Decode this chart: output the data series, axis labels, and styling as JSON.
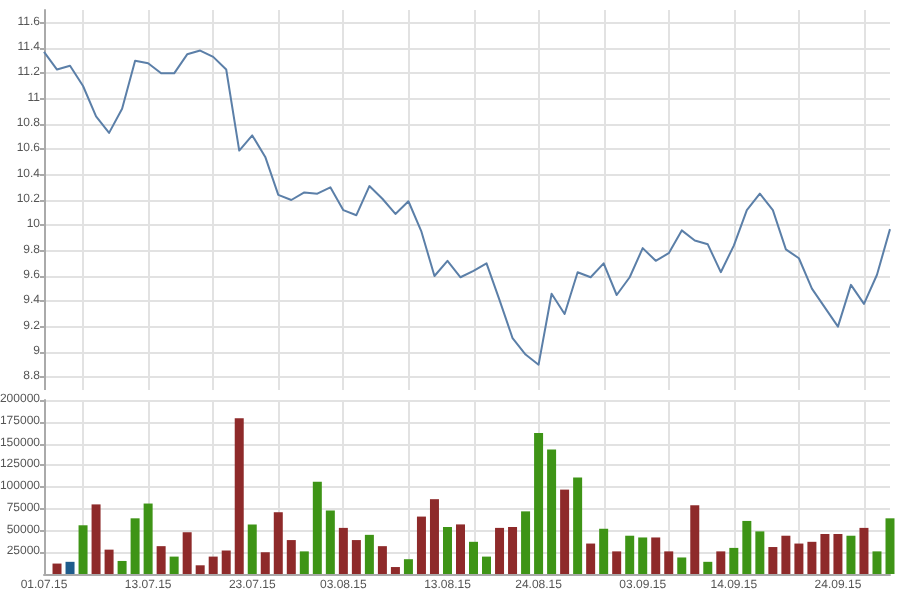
{
  "chart_data": [
    {
      "type": "line",
      "categories": [
        "01.07.15",
        null,
        null,
        null,
        null,
        null,
        null,
        null,
        "13.07.15",
        null,
        null,
        null,
        null,
        null,
        null,
        null,
        "23.07.15",
        null,
        null,
        null,
        null,
        null,
        null,
        "03.08.15",
        null,
        null,
        null,
        null,
        null,
        null,
        null,
        "13.08.15",
        null,
        null,
        null,
        null,
        null,
        null,
        "24.08.15",
        null,
        null,
        null,
        null,
        null,
        null,
        null,
        "03.09.15",
        null,
        null,
        null,
        null,
        null,
        null,
        "14.09.15",
        null,
        null,
        null,
        null,
        null,
        null,
        null,
        "24.09.15",
        null,
        null,
        null,
        null
      ],
      "values": [
        11.37,
        11.23,
        11.26,
        11.1,
        10.86,
        10.73,
        10.92,
        11.3,
        11.28,
        11.2,
        11.2,
        11.35,
        11.38,
        11.33,
        11.23,
        10.59,
        10.71,
        10.54,
        10.24,
        10.2,
        10.26,
        10.25,
        10.3,
        10.12,
        10.08,
        10.31,
        10.21,
        10.09,
        10.19,
        9.95,
        9.6,
        9.72,
        9.59,
        9.64,
        9.7,
        9.41,
        9.11,
        8.98,
        8.9,
        9.46,
        9.3,
        9.63,
        9.59,
        9.7,
        9.45,
        9.59,
        9.82,
        9.72,
        9.78,
        9.96,
        9.88,
        9.85,
        9.63,
        9.84,
        10.12,
        10.25,
        10.12,
        9.81,
        9.74,
        9.5,
        9.35,
        9.2,
        9.53,
        9.38,
        9.61,
        9.97
      ],
      "color": "#5b7fa8",
      "marker": "none",
      "ylim": [
        8.7,
        11.7
      ],
      "yticks": [
        8.8,
        9.0,
        9.2,
        9.4,
        9.6,
        9.8,
        10.0,
        10.2,
        10.4,
        10.6,
        10.8,
        11.0,
        11.2,
        11.4,
        11.6
      ],
      "grid": true,
      "tick_labels": "y"
    },
    {
      "type": "bar",
      "categories": [
        "01.07.15",
        null,
        null,
        null,
        null,
        null,
        null,
        null,
        "13.07.15",
        null,
        null,
        null,
        null,
        null,
        null,
        null,
        "23.07.15",
        null,
        null,
        null,
        null,
        null,
        null,
        "03.08.15",
        null,
        null,
        null,
        null,
        null,
        null,
        null,
        "13.08.15",
        null,
        null,
        null,
        null,
        null,
        null,
        "24.08.15",
        null,
        null,
        null,
        null,
        null,
        null,
        null,
        "03.09.15",
        null,
        null,
        null,
        null,
        null,
        null,
        "14.09.15",
        null,
        null,
        null,
        null,
        null,
        null,
        null,
        "24.09.15",
        null,
        null,
        null,
        null
      ],
      "values": [
        null,
        12000,
        14000,
        56000,
        80000,
        28000,
        15000,
        64000,
        81000,
        32000,
        20000,
        48000,
        10000,
        20000,
        27000,
        179000,
        57000,
        25000,
        71000,
        39000,
        26000,
        106000,
        73000,
        53000,
        39000,
        45000,
        32000,
        8000,
        17000,
        66000,
        86000,
        54000,
        57000,
        37000,
        20000,
        53000,
        54000,
        72000,
        162000,
        143000,
        97000,
        111000,
        35000,
        52000,
        26000,
        44000,
        42000,
        42000,
        26000,
        19000,
        79000,
        14000,
        26000,
        30000,
        61000,
        49000,
        31000,
        44000,
        35000,
        37000,
        46000,
        46000,
        44000,
        53000,
        26000,
        64000
      ],
      "colors": [
        null,
        "#8e2a2a",
        "#1f5c8c",
        "#3e9416",
        "#8e2a2a",
        "#8e2a2a",
        "#3e9416",
        "#3e9416",
        "#3e9416",
        "#8e2a2a",
        "#3e9416",
        "#8e2a2a",
        "#8e2a2a",
        "#8e2a2a",
        "#8e2a2a",
        "#8e2a2a",
        "#3e9416",
        "#8e2a2a",
        "#8e2a2a",
        "#8e2a2a",
        "#3e9416",
        "#3e9416",
        "#3e9416",
        "#8e2a2a",
        "#8e2a2a",
        "#3e9416",
        "#8e2a2a",
        "#8e2a2a",
        "#3e9416",
        "#8e2a2a",
        "#8e2a2a",
        "#3e9416",
        "#8e2a2a",
        "#3e9416",
        "#3e9416",
        "#8e2a2a",
        "#8e2a2a",
        "#3e9416",
        "#3e9416",
        "#3e9416",
        "#8e2a2a",
        "#3e9416",
        "#8e2a2a",
        "#3e9416",
        "#8e2a2a",
        "#3e9416",
        "#3e9416",
        "#8e2a2a",
        "#8e2a2a",
        "#3e9416",
        "#8e2a2a",
        "#3e9416",
        "#8e2a2a",
        "#3e9416",
        "#3e9416",
        "#3e9416",
        "#8e2a2a",
        "#8e2a2a",
        "#8e2a2a",
        "#8e2a2a",
        "#8e2a2a",
        "#8e2a2a",
        "#3e9416",
        "#8e2a2a",
        "#3e9416",
        "#3e9416"
      ],
      "ylim": [
        0,
        200000
      ],
      "yticks": [
        25000,
        50000,
        75000,
        100000,
        125000,
        150000,
        175000,
        200000
      ],
      "grid": true
    }
  ]
}
